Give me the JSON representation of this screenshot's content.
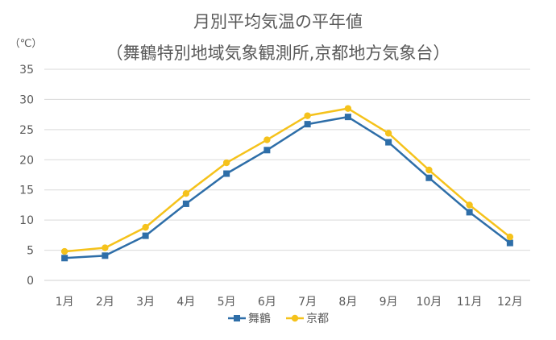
{
  "chart_data": {
    "type": "line",
    "title": "月別平均気温の平年値",
    "subtitle": "（舞鶴特別地域気象観測所,京都地方気象台）",
    "ylabel": "（℃）",
    "xlabel": "",
    "categories": [
      "1月",
      "2月",
      "3月",
      "4月",
      "5月",
      "6月",
      "7月",
      "8月",
      "9月",
      "10月",
      "11月",
      "12月"
    ],
    "ylim": [
      0,
      35
    ],
    "yticks": [
      0,
      5,
      10,
      15,
      20,
      25,
      30,
      35
    ],
    "grid": true,
    "legend_position": "bottom",
    "series": [
      {
        "name": "舞鶴",
        "color": "#2e6ea8",
        "marker": "square",
        "values": [
          3.7,
          4.1,
          7.4,
          12.7,
          17.7,
          21.6,
          25.9,
          27.1,
          22.9,
          17.0,
          11.3,
          6.2
        ]
      },
      {
        "name": "京都",
        "color": "#f5c21b",
        "marker": "circle",
        "values": [
          4.8,
          5.4,
          8.8,
          14.4,
          19.5,
          23.3,
          27.3,
          28.5,
          24.4,
          18.3,
          12.5,
          7.2
        ]
      }
    ]
  }
}
